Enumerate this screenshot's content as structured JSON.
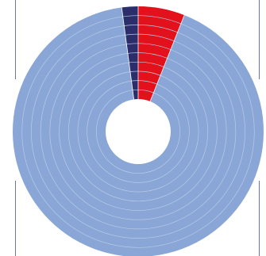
{
  "chart_data": {
    "type": "pie",
    "variant": "multi-ring donut",
    "ring_count": 10,
    "title": "",
    "legend": "none",
    "slices": [
      {
        "value": 6.0,
        "color": "#e2111b"
      },
      {
        "value": 91.9,
        "color": "#89a6d6"
      },
      {
        "value": 2.1,
        "color": "#2c2e6c"
      }
    ],
    "ring_separator_color": "#b9cbe8",
    "frame_color": "#6d72a8"
  }
}
